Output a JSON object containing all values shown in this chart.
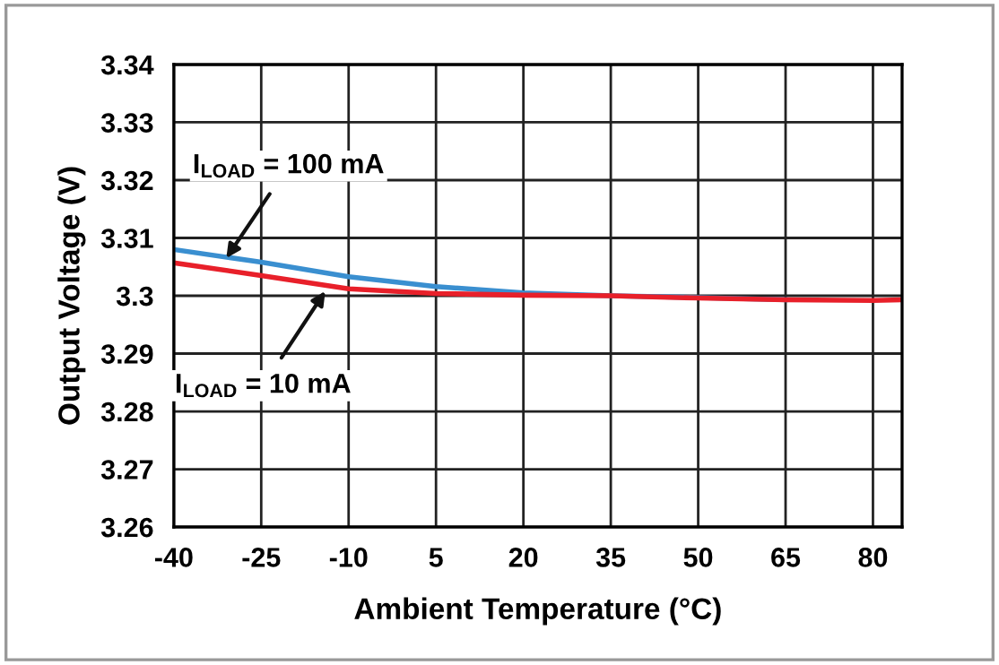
{
  "chart_data": {
    "type": "line",
    "xlabel": "Ambient Temperature (°C)",
    "ylabel": "Output Voltage (V)",
    "x": [
      -40,
      -25,
      -10,
      5,
      20,
      35,
      50,
      65,
      80,
      85
    ],
    "series": [
      {
        "color": "#3a8fd0",
        "values": [
          3.308,
          3.3058,
          3.3033,
          3.3016,
          3.3005,
          3.3,
          3.2997,
          3.2993,
          null,
          null
        ]
      },
      {
        "color": "#e8202a",
        "values": [
          3.3057,
          3.3035,
          3.3012,
          3.3004,
          3.3001,
          3.3,
          3.2996,
          3.2993,
          3.2992,
          3.2993
        ]
      }
    ],
    "xlim": [
      -40,
      85
    ],
    "xticks": [
      -40,
      -25,
      -10,
      5,
      20,
      35,
      50,
      65,
      80
    ],
    "ylim": [
      3.26,
      3.34
    ],
    "yticks": [
      3.26,
      {
        "value": 3.27,
        "label": "3.27"
      },
      3.28,
      3.29,
      {
        "value": 3.3,
        "label": "3.3"
      },
      3.31,
      3.32,
      3.33,
      3.34
    ],
    "grid": true,
    "legend": false,
    "marker": "none",
    "line_style": "solid",
    "annotations": [
      {
        "text": "I$_{LOAD}$ = 100 mA",
        "x": -31,
        "y": 3.3065
      },
      {
        "text": "I$_{LOAD}$ = 10 mA",
        "x": -14,
        "y": 3.3008
      }
    ]
  }
}
